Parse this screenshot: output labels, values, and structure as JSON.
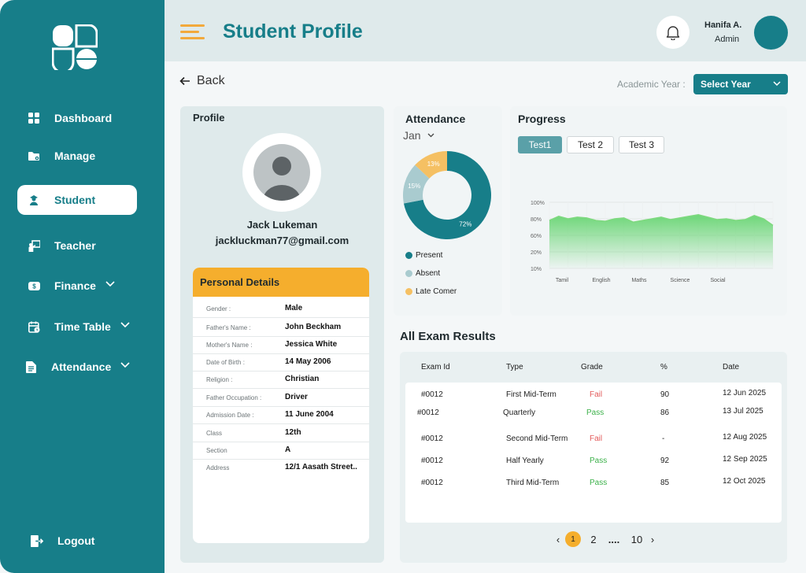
{
  "header": {
    "title": "Student Profile",
    "user_name": "Hanifa A.",
    "user_role": "Admin"
  },
  "sidebar": {
    "items": [
      {
        "label": "Dashboard",
        "icon": "grid-icon"
      },
      {
        "label": "Manage",
        "icon": "folder-gear-icon"
      },
      {
        "label": "Student",
        "icon": "student-icon"
      },
      {
        "label": "Teacher",
        "icon": "teacher-board-icon"
      },
      {
        "label": "Finance",
        "icon": "money-icon"
      },
      {
        "label": "Time Table",
        "icon": "calendar-icon"
      },
      {
        "label": "Attendance",
        "icon": "document-icon"
      }
    ],
    "logout_label": "Logout"
  },
  "controls": {
    "back_label": "Back",
    "academic_year_label": "Academic Year :",
    "academic_year_value": "Select Year"
  },
  "profile": {
    "title": "Profile",
    "name": "Jack Lukeman",
    "email": "jackluckman77@gmail.com",
    "details_title": "Personal Details",
    "details": [
      {
        "k": "Gender :",
        "v": "Male"
      },
      {
        "k": "Father's Name :",
        "v": "John Beckham"
      },
      {
        "k": "Mother's Name :",
        "v": "Jessica White"
      },
      {
        "k": "Date of Birth :",
        "v": "14 May 2006"
      },
      {
        "k": "Religion :",
        "v": "Christian"
      },
      {
        "k": "Father Occupation :",
        "v": "Driver"
      },
      {
        "k": "Admission Date :",
        "v": "11 June 2004"
      },
      {
        "k": "Class",
        "v": "12th"
      },
      {
        "k": "Section",
        "v": "A"
      },
      {
        "k": "Address",
        "v": "12/1 Aasath Street.."
      }
    ]
  },
  "attendance": {
    "title": "Attendance",
    "month": "Jan",
    "legend": [
      "Present",
      "Absent",
      "Late Comer"
    ],
    "colors": {
      "present": "#177e89",
      "absent": "#a9cbcf",
      "late": "#f5c063"
    }
  },
  "progress": {
    "title": "Progress",
    "tabs": [
      "Test1",
      "Test 2",
      "Test 3"
    ],
    "active_tab": "Test1"
  },
  "exam": {
    "title": "All Exam Results",
    "columns": [
      "Exam Id",
      "Type",
      "Grade",
      "%",
      "Date"
    ],
    "rows": [
      {
        "id": "#0012",
        "type": "First Mid-Term",
        "grade": "Fail",
        "pct": "90",
        "date": "12 Jun 2025"
      },
      {
        "id": "#0012",
        "type": "Quarterly",
        "grade": "Pass",
        "pct": "86",
        "date": "13 Jul 2025"
      },
      {
        "id": "#0012",
        "type": "Second Mid-Term",
        "grade": "Fail",
        "pct": "-",
        "date": "12 Aug 2025"
      },
      {
        "id": "#0012",
        "type": "Half Yearly",
        "grade": "Pass",
        "pct": "92",
        "date": "12 Sep 2025"
      },
      {
        "id": "#0012",
        "type": "Third Mid-Term",
        "grade": "Pass",
        "pct": "85",
        "date": "12 Oct 2025"
      }
    ],
    "pagination": {
      "prev": "‹",
      "pages": [
        "1",
        "2",
        "....",
        "10"
      ],
      "next": "›",
      "current": "1"
    }
  },
  "chart_data": [
    {
      "type": "pie",
      "title": "Attendance",
      "categories": [
        "Present",
        "Absent",
        "Late Comer"
      ],
      "values": [
        72,
        15,
        13
      ],
      "data_labels": [
        "72%",
        "15%",
        "13%"
      ]
    },
    {
      "type": "area",
      "title": "Progress",
      "categories": [
        "Tamil",
        "English",
        "Maths",
        "Science",
        "Social"
      ],
      "y_tick_labels": [
        "100%",
        "80%",
        "60%",
        "20%",
        "10%"
      ],
      "x": [
        0,
        0.25,
        0.5,
        0.75,
        1,
        1.25,
        1.5,
        1.75,
        2,
        2.25,
        2.5,
        2.75,
        3,
        3.25,
        3.5,
        3.75,
        4,
        4.25,
        4.5,
        4.75,
        5,
        5.25,
        5.5,
        5.75,
        6
      ],
      "values": [
        78,
        83,
        80,
        82,
        81,
        78,
        77,
        80,
        81,
        76,
        78,
        80,
        82,
        79,
        81,
        83,
        85,
        82,
        79,
        80,
        78,
        79,
        84,
        80,
        72
      ],
      "grid": true,
      "color": "#5fd36a"
    }
  ]
}
